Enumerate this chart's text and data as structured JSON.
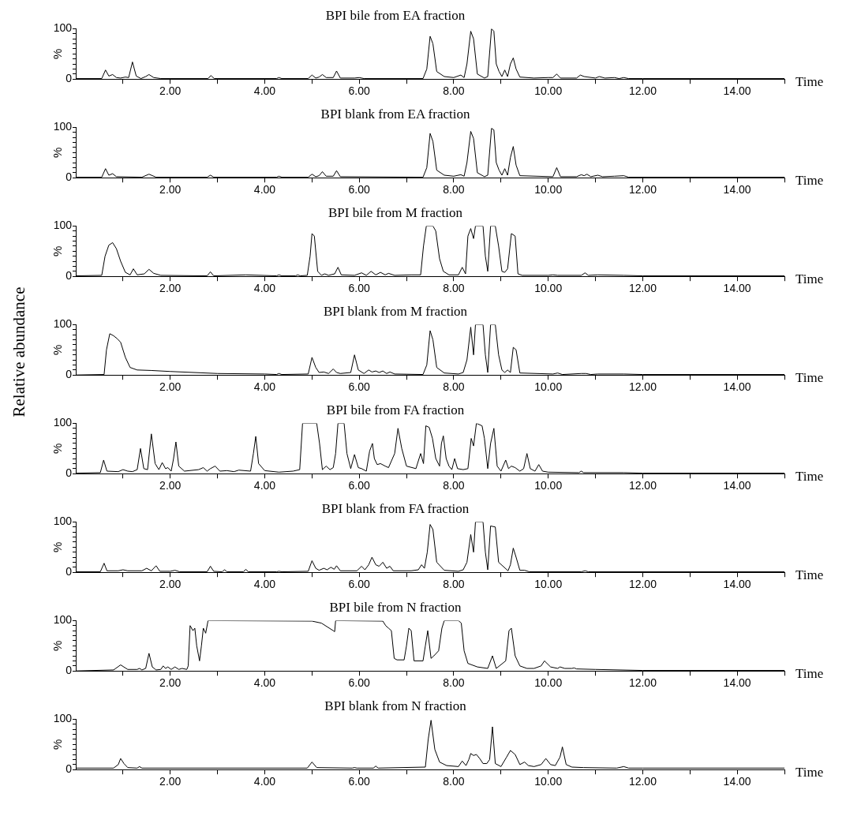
{
  "chart_data": [
    {
      "type": "line",
      "title": "BPI bile from EA fraction",
      "xlabel": "Time",
      "ylabel": "%",
      "color": "#000000",
      "xlim": [
        0,
        15
      ],
      "ylim": [
        0,
        100
      ],
      "xticks": [
        {
          "value": 1,
          "label": null
        },
        {
          "value": 2,
          "label": "2.00"
        },
        {
          "value": 3,
          "label": null
        },
        {
          "value": 4,
          "label": "4.00"
        },
        {
          "value": 5,
          "label": null
        },
        {
          "value": 6,
          "label": "6.00"
        },
        {
          "value": 7,
          "label": null
        },
        {
          "value": 8,
          "label": "8.00"
        },
        {
          "value": 9,
          "label": null
        },
        {
          "value": 10,
          "label": "10.00"
        },
        {
          "value": 11,
          "label": null
        },
        {
          "value": 12,
          "label": "12.00"
        },
        {
          "value": 13,
          "label": null
        },
        {
          "value": 14,
          "label": "14.00"
        },
        {
          "value": 15,
          "label": null
        }
      ],
      "yticks": [
        {
          "value": 0,
          "label": "0"
        },
        {
          "value": 10,
          "label": null
        },
        {
          "value": 20,
          "label": null
        },
        {
          "value": 30,
          "label": null
        },
        {
          "value": 40,
          "label": null
        },
        {
          "value": 50,
          "label": null
        },
        {
          "value": 60,
          "label": null
        },
        {
          "value": 70,
          "label": null
        },
        {
          "value": 80,
          "label": null
        },
        {
          "value": 90,
          "label": null
        },
        {
          "value": 100,
          "label": "100"
        }
      ],
      "x": [
        0,
        0.55,
        0.63,
        0.7,
        0.78,
        0.86,
        0.95,
        1.05,
        1.12,
        1.2,
        1.28,
        1.38,
        1.48,
        1.55,
        1.65,
        1.8,
        2.8,
        2.86,
        2.93,
        4.25,
        4.3,
        4.36,
        4.92,
        5.0,
        5.08,
        5.15,
        5.22,
        5.3,
        5.45,
        5.52,
        5.6,
        5.9,
        6.0,
        6.1,
        7.35,
        7.43,
        7.5,
        7.56,
        7.64,
        7.8,
        8.0,
        8.15,
        8.22,
        8.28,
        8.36,
        8.42,
        8.5,
        8.65,
        8.72,
        8.8,
        8.85,
        8.9,
        8.96,
        9.02,
        9.08,
        9.14,
        9.2,
        9.26,
        9.32,
        9.4,
        9.7,
        10.0,
        10.1,
        10.18,
        10.26,
        10.6,
        10.68,
        10.76,
        10.84,
        11.0,
        11.08,
        11.2,
        11.4,
        11.5,
        11.6,
        11.7,
        12,
        15
      ],
      "values": [
        1,
        1,
        18,
        6,
        9,
        3,
        2,
        4,
        3,
        34,
        6,
        1,
        5,
        9,
        3,
        1,
        1,
        7,
        1,
        1,
        3,
        1,
        1,
        8,
        2,
        4,
        9,
        3,
        3,
        16,
        2,
        2,
        3,
        1,
        1,
        20,
        85,
        70,
        15,
        5,
        3,
        8,
        3,
        30,
        95,
        80,
        10,
        2,
        5,
        100,
        95,
        30,
        15,
        5,
        18,
        5,
        30,
        42,
        20,
        4,
        2,
        3,
        3,
        10,
        2,
        2,
        8,
        5,
        4,
        2,
        5,
        2,
        3,
        1,
        3,
        1,
        1,
        1
      ]
    },
    {
      "type": "line",
      "title": "BPI blank from EA fraction",
      "xlabel": "Time",
      "ylabel": "%",
      "color": "#000000",
      "xlim": [
        0,
        15
      ],
      "ylim": [
        0,
        100
      ],
      "xticks": [
        {
          "value": 1,
          "label": null
        },
        {
          "value": 2,
          "label": "2.00"
        },
        {
          "value": 3,
          "label": null
        },
        {
          "value": 4,
          "label": "4.00"
        },
        {
          "value": 5,
          "label": null
        },
        {
          "value": 6,
          "label": "6.00"
        },
        {
          "value": 7,
          "label": null
        },
        {
          "value": 8,
          "label": "8.00"
        },
        {
          "value": 9,
          "label": null
        },
        {
          "value": 10,
          "label": "10.00"
        },
        {
          "value": 11,
          "label": null
        },
        {
          "value": 12,
          "label": "12.00"
        },
        {
          "value": 13,
          "label": null
        },
        {
          "value": 14,
          "label": "14.00"
        },
        {
          "value": 15,
          "label": null
        }
      ],
      "yticks": [
        {
          "value": 0,
          "label": "0"
        },
        {
          "value": 10,
          "label": null
        },
        {
          "value": 20,
          "label": null
        },
        {
          "value": 30,
          "label": null
        },
        {
          "value": 40,
          "label": null
        },
        {
          "value": 50,
          "label": null
        },
        {
          "value": 60,
          "label": null
        },
        {
          "value": 70,
          "label": null
        },
        {
          "value": 80,
          "label": null
        },
        {
          "value": 90,
          "label": null
        },
        {
          "value": 100,
          "label": "100"
        }
      ],
      "x": [
        0,
        0.55,
        0.63,
        0.7,
        0.78,
        0.86,
        1.4,
        1.55,
        1.7,
        2.78,
        2.85,
        2.92,
        4.25,
        4.3,
        4.36,
        4.92,
        5.0,
        5.08,
        5.15,
        5.22,
        5.3,
        5.45,
        5.52,
        5.6,
        7.35,
        7.43,
        7.5,
        7.56,
        7.64,
        7.8,
        8.0,
        8.15,
        8.22,
        8.28,
        8.36,
        8.42,
        8.5,
        8.65,
        8.72,
        8.8,
        8.85,
        8.9,
        8.96,
        9.02,
        9.08,
        9.14,
        9.2,
        9.26,
        9.32,
        9.4,
        10.1,
        10.18,
        10.26,
        10.6,
        10.7,
        10.76,
        10.82,
        10.9,
        11.05,
        11.15,
        11.4,
        11.6,
        11.7,
        15
      ],
      "values": [
        1,
        1,
        18,
        5,
        8,
        2,
        1,
        7,
        1,
        1,
        5,
        1,
        1,
        3,
        1,
        1,
        7,
        2,
        4,
        12,
        3,
        3,
        14,
        2,
        1,
        20,
        88,
        72,
        15,
        5,
        3,
        6,
        3,
        30,
        92,
        78,
        10,
        2,
        5,
        98,
        95,
        30,
        15,
        5,
        18,
        5,
        40,
        62,
        25,
        4,
        2,
        20,
        2,
        2,
        6,
        4,
        7,
        2,
        5,
        2,
        3,
        4,
        1,
        1
      ]
    },
    {
      "type": "line",
      "title": "BPI bile from M fraction",
      "xlabel": "Time",
      "ylabel": "%",
      "color": "#000000",
      "xlim": [
        0,
        15
      ],
      "ylim": [
        0,
        100
      ],
      "xticks": [
        {
          "value": 1,
          "label": null
        },
        {
          "value": 2,
          "label": "2.00"
        },
        {
          "value": 3,
          "label": null
        },
        {
          "value": 4,
          "label": "4.00"
        },
        {
          "value": 5,
          "label": null
        },
        {
          "value": 6,
          "label": "6.00"
        },
        {
          "value": 7,
          "label": null
        },
        {
          "value": 8,
          "label": "8.00"
        },
        {
          "value": 9,
          "label": null
        },
        {
          "value": 10,
          "label": "10.00"
        },
        {
          "value": 11,
          "label": null
        },
        {
          "value": 12,
          "label": "12.00"
        },
        {
          "value": 13,
          "label": null
        },
        {
          "value": 14,
          "label": "14.00"
        },
        {
          "value": 15,
          "label": null
        }
      ],
      "yticks": [
        {
          "value": 0,
          "label": "0"
        },
        {
          "value": 10,
          "label": null
        },
        {
          "value": 20,
          "label": null
        },
        {
          "value": 30,
          "label": null
        },
        {
          "value": 40,
          "label": null
        },
        {
          "value": 50,
          "label": null
        },
        {
          "value": 60,
          "label": null
        },
        {
          "value": 70,
          "label": null
        },
        {
          "value": 80,
          "label": null
        },
        {
          "value": 90,
          "label": null
        },
        {
          "value": 100,
          "label": "100"
        }
      ],
      "x": [
        0,
        0.55,
        0.62,
        0.7,
        0.78,
        0.86,
        0.95,
        1.05,
        1.15,
        1.22,
        1.3,
        1.45,
        1.55,
        1.65,
        1.8,
        2.78,
        2.85,
        2.92,
        3.6,
        4.25,
        4.3,
        4.36,
        4.65,
        4.7,
        4.75,
        4.9,
        4.96,
        5.0,
        5.05,
        5.12,
        5.2,
        5.27,
        5.35,
        5.48,
        5.55,
        5.62,
        5.9,
        6.05,
        6.15,
        6.25,
        6.35,
        6.45,
        6.55,
        6.62,
        6.75,
        7.1,
        7.3,
        7.36,
        7.42,
        7.56,
        7.62,
        7.7,
        7.78,
        7.9,
        8.1,
        8.18,
        8.25,
        8.3,
        8.36,
        8.42,
        8.46,
        8.5,
        8.62,
        8.67,
        8.72,
        8.78,
        8.88,
        8.95,
        9.02,
        9.08,
        9.14,
        9.22,
        9.3,
        9.36,
        9.45,
        10.0,
        10.1,
        10.2,
        10.7,
        10.78,
        10.85,
        11.05,
        11.6,
        12,
        15
      ],
      "values": [
        1,
        2,
        40,
        62,
        67,
        55,
        30,
        8,
        3,
        15,
        3,
        5,
        14,
        6,
        2,
        1,
        9,
        1,
        3,
        1,
        3,
        1,
        1,
        3,
        1,
        2,
        40,
        85,
        80,
        10,
        2,
        5,
        2,
        5,
        18,
        3,
        2,
        7,
        2,
        10,
        3,
        8,
        3,
        6,
        2,
        3,
        3,
        60,
        100,
        100,
        90,
        35,
        10,
        3,
        3,
        18,
        5,
        80,
        95,
        75,
        100,
        100,
        100,
        40,
        10,
        100,
        100,
        60,
        10,
        8,
        15,
        85,
        80,
        5,
        2,
        2,
        3,
        2,
        2,
        7,
        2,
        3,
        2,
        1,
        1
      ]
    },
    {
      "type": "line",
      "title": "BPI blank from M fraction",
      "xlabel": "Time",
      "ylabel": "%",
      "color": "#000000",
      "xlim": [
        0,
        15
      ],
      "ylim": [
        0,
        100
      ],
      "annotations": [
        "Relative abundance"
      ],
      "xticks": [
        {
          "value": 1,
          "label": null
        },
        {
          "value": 2,
          "label": "2.00"
        },
        {
          "value": 3,
          "label": null
        },
        {
          "value": 4,
          "label": "4.00"
        },
        {
          "value": 5,
          "label": null
        },
        {
          "value": 6,
          "label": "6.00"
        },
        {
          "value": 7,
          "label": null
        },
        {
          "value": 8,
          "label": "8.00"
        },
        {
          "value": 9,
          "label": null
        },
        {
          "value": 10,
          "label": "10.00"
        },
        {
          "value": 11,
          "label": null
        },
        {
          "value": 12,
          "label": "12.00"
        },
        {
          "value": 13,
          "label": null
        },
        {
          "value": 14,
          "label": "14.00"
        },
        {
          "value": 15,
          "label": null
        }
      ],
      "yticks": [
        {
          "value": 0,
          "label": "0"
        },
        {
          "value": 10,
          "label": null
        },
        {
          "value": 20,
          "label": null
        },
        {
          "value": 30,
          "label": null
        },
        {
          "value": 40,
          "label": null
        },
        {
          "value": 50,
          "label": null
        },
        {
          "value": 60,
          "label": null
        },
        {
          "value": 70,
          "label": null
        },
        {
          "value": 80,
          "label": null
        },
        {
          "value": 90,
          "label": null
        },
        {
          "value": 100,
          "label": "100"
        }
      ],
      "x": [
        0,
        0.6,
        0.65,
        0.72,
        0.8,
        0.88,
        0.95,
        1.05,
        1.15,
        1.3,
        1.6,
        2,
        3,
        4,
        4.25,
        4.3,
        4.36,
        4.92,
        5.0,
        5.08,
        5.15,
        5.25,
        5.35,
        5.45,
        5.52,
        5.6,
        5.82,
        5.9,
        5.98,
        6.1,
        6.2,
        6.27,
        6.35,
        6.42,
        6.5,
        6.58,
        6.65,
        6.75,
        7.35,
        7.43,
        7.5,
        7.56,
        7.64,
        7.8,
        8.1,
        8.2,
        8.28,
        8.36,
        8.42,
        8.46,
        8.5,
        8.62,
        8.67,
        8.72,
        8.78,
        8.88,
        8.95,
        9.02,
        9.08,
        9.14,
        9.2,
        9.26,
        9.32,
        9.4,
        10.1,
        10.2,
        10.3,
        10.7,
        10.8,
        10.9,
        11.05,
        11.6,
        12,
        15
      ],
      "values": [
        0,
        1,
        50,
        82,
        78,
        72,
        65,
        35,
        15,
        10,
        9,
        7,
        3,
        2,
        1,
        3,
        1,
        2,
        35,
        15,
        5,
        6,
        3,
        12,
        5,
        3,
        5,
        40,
        10,
        3,
        10,
        6,
        8,
        5,
        8,
        3,
        6,
        2,
        1,
        20,
        88,
        70,
        15,
        4,
        2,
        5,
        30,
        95,
        40,
        100,
        100,
        100,
        40,
        5,
        100,
        100,
        40,
        10,
        5,
        10,
        5,
        55,
        50,
        4,
        2,
        4,
        1,
        3,
        3,
        1,
        2,
        2,
        1,
        1
      ]
    },
    {
      "type": "line",
      "title": "BPI bile from FA fraction",
      "xlabel": "Time",
      "ylabel": "%",
      "color": "#000000",
      "xlim": [
        0,
        15
      ],
      "ylim": [
        0,
        100
      ],
      "xticks": [
        {
          "value": 1,
          "label": null
        },
        {
          "value": 2,
          "label": "2.00"
        },
        {
          "value": 3,
          "label": null
        },
        {
          "value": 4,
          "label": "4.00"
        },
        {
          "value": 5,
          "label": null
        },
        {
          "value": 6,
          "label": "6.00"
        },
        {
          "value": 7,
          "label": null
        },
        {
          "value": 8,
          "label": "8.00"
        },
        {
          "value": 9,
          "label": null
        },
        {
          "value": 10,
          "label": "10.00"
        },
        {
          "value": 11,
          "label": null
        },
        {
          "value": 12,
          "label": "12.00"
        },
        {
          "value": 13,
          "label": null
        },
        {
          "value": 14,
          "label": "14.00"
        },
        {
          "value": 15,
          "label": null
        }
      ],
      "yticks": [
        {
          "value": 0,
          "label": "0"
        },
        {
          "value": 10,
          "label": null
        },
        {
          "value": 20,
          "label": null
        },
        {
          "value": 30,
          "label": null
        },
        {
          "value": 40,
          "label": null
        },
        {
          "value": 50,
          "label": null
        },
        {
          "value": 60,
          "label": null
        },
        {
          "value": 70,
          "label": null
        },
        {
          "value": 80,
          "label": null
        },
        {
          "value": 90,
          "label": null
        },
        {
          "value": 100,
          "label": "100"
        }
      ],
      "x": [
        0,
        0.52,
        0.59,
        0.66,
        0.9,
        1.0,
        1.1,
        1.2,
        1.3,
        1.37,
        1.44,
        1.52,
        1.6,
        1.68,
        1.76,
        1.83,
        1.9,
        1.95,
        2.02,
        2.07,
        2.12,
        2.18,
        2.3,
        2.6,
        2.7,
        2.78,
        2.85,
        2.95,
        3.05,
        3.2,
        3.35,
        3.45,
        3.7,
        3.76,
        3.81,
        3.87,
        4.0,
        4.3,
        4.6,
        4.74,
        4.8,
        5.1,
        5.16,
        5.22,
        5.3,
        5.38,
        5.45,
        5.5,
        5.55,
        5.68,
        5.74,
        5.82,
        5.9,
        5.98,
        6.05,
        6.15,
        6.22,
        6.28,
        6.32,
        6.38,
        6.45,
        6.55,
        6.62,
        6.75,
        6.82,
        6.9,
        7.0,
        7.2,
        7.3,
        7.36,
        7.41,
        7.48,
        7.55,
        7.62,
        7.7,
        7.74,
        7.78,
        7.84,
        7.9,
        7.96,
        8.02,
        8.08,
        8.2,
        8.3,
        8.37,
        8.42,
        8.48,
        8.6,
        8.65,
        8.72,
        8.78,
        8.85,
        8.92,
        9.0,
        9.1,
        9.16,
        9.22,
        9.3,
        9.4,
        9.48,
        9.55,
        9.62,
        9.72,
        9.8,
        9.88,
        10.0,
        10.65,
        10.7,
        10.75,
        11.6,
        12,
        15
      ],
      "values": [
        1,
        2,
        27,
        5,
        4,
        8,
        5,
        4,
        8,
        50,
        10,
        8,
        79,
        20,
        8,
        22,
        10,
        12,
        5,
        30,
        63,
        15,
        5,
        8,
        12,
        5,
        10,
        15,
        5,
        6,
        4,
        7,
        5,
        40,
        74,
        20,
        6,
        3,
        5,
        8,
        100,
        100,
        60,
        8,
        15,
        8,
        12,
        40,
        100,
        100,
        40,
        10,
        38,
        12,
        10,
        5,
        45,
        60,
        30,
        18,
        20,
        15,
        12,
        40,
        90,
        50,
        15,
        10,
        40,
        20,
        95,
        92,
        70,
        30,
        15,
        60,
        75,
        30,
        15,
        8,
        30,
        10,
        8,
        10,
        70,
        55,
        100,
        95,
        70,
        10,
        60,
        90,
        15,
        5,
        27,
        10,
        15,
        12,
        5,
        10,
        40,
        10,
        5,
        18,
        5,
        3,
        2,
        5,
        2,
        2,
        1,
        1
      ]
    },
    {
      "type": "line",
      "title": "BPI blank from FA fraction",
      "xlabel": "Time",
      "ylabel": "%",
      "color": "#000000",
      "xlim": [
        0,
        15
      ],
      "ylim": [
        0,
        100
      ],
      "xticks": [
        {
          "value": 1,
          "label": null
        },
        {
          "value": 2,
          "label": "2.00"
        },
        {
          "value": 3,
          "label": null
        },
        {
          "value": 4,
          "label": "4.00"
        },
        {
          "value": 5,
          "label": null
        },
        {
          "value": 6,
          "label": "6.00"
        },
        {
          "value": 7,
          "label": null
        },
        {
          "value": 8,
          "label": "8.00"
        },
        {
          "value": 9,
          "label": null
        },
        {
          "value": 10,
          "label": "10.00"
        },
        {
          "value": 11,
          "label": null
        },
        {
          "value": 12,
          "label": "12.00"
        },
        {
          "value": 13,
          "label": null
        },
        {
          "value": 14,
          "label": "14.00"
        },
        {
          "value": 15,
          "label": null
        }
      ],
      "yticks": [
        {
          "value": 0,
          "label": "0"
        },
        {
          "value": 10,
          "label": null
        },
        {
          "value": 20,
          "label": null
        },
        {
          "value": 30,
          "label": null
        },
        {
          "value": 40,
          "label": null
        },
        {
          "value": 50,
          "label": null
        },
        {
          "value": 60,
          "label": null
        },
        {
          "value": 70,
          "label": null
        },
        {
          "value": 80,
          "label": null
        },
        {
          "value": 90,
          "label": null
        },
        {
          "value": 100,
          "label": "100"
        }
      ],
      "x": [
        0,
        0.52,
        0.6,
        0.66,
        0.9,
        1.0,
        1.1,
        1.4,
        1.5,
        1.6,
        1.7,
        1.78,
        2.0,
        2.1,
        2.2,
        2.78,
        2.85,
        2.92,
        3.1,
        3.15,
        3.2,
        3.55,
        3.6,
        3.65,
        4.25,
        4.3,
        4.36,
        4.92,
        5.0,
        5.08,
        5.15,
        5.25,
        5.32,
        5.4,
        5.47,
        5.52,
        5.6,
        5.95,
        6.05,
        6.12,
        6.2,
        6.27,
        6.35,
        6.42,
        6.5,
        6.58,
        6.65,
        6.72,
        7.1,
        7.25,
        7.32,
        7.38,
        7.44,
        7.5,
        7.56,
        7.64,
        7.8,
        8.1,
        8.2,
        8.28,
        8.36,
        8.42,
        8.46,
        8.5,
        8.62,
        8.67,
        8.72,
        8.78,
        8.88,
        8.95,
        9.15,
        9.2,
        9.26,
        9.32,
        9.4,
        9.5,
        9.6,
        10.7,
        10.78,
        10.85,
        15
      ],
      "values": [
        1,
        1,
        18,
        3,
        3,
        5,
        3,
        3,
        8,
        3,
        13,
        2,
        2,
        4,
        1,
        1,
        12,
        2,
        1,
        5,
        1,
        1,
        6,
        1,
        1,
        2,
        1,
        2,
        23,
        8,
        4,
        8,
        5,
        10,
        6,
        13,
        3,
        3,
        12,
        5,
        15,
        30,
        15,
        12,
        20,
        8,
        12,
        3,
        3,
        5,
        15,
        8,
        40,
        95,
        85,
        20,
        4,
        2,
        5,
        20,
        75,
        40,
        100,
        100,
        100,
        40,
        5,
        92,
        90,
        20,
        3,
        15,
        48,
        30,
        4,
        4,
        1,
        1,
        3,
        1,
        1
      ]
    },
    {
      "type": "line",
      "title": "BPI bile from N fraction",
      "xlabel": "Time",
      "ylabel": "%",
      "color": "#000000",
      "xlim": [
        0,
        15
      ],
      "ylim": [
        0,
        100
      ],
      "xticks": [
        {
          "value": 1,
          "label": null
        },
        {
          "value": 2,
          "label": "2.00"
        },
        {
          "value": 3,
          "label": null
        },
        {
          "value": 4,
          "label": "4.00"
        },
        {
          "value": 5,
          "label": null
        },
        {
          "value": 6,
          "label": "6.00"
        },
        {
          "value": 7,
          "label": null
        },
        {
          "value": 8,
          "label": "8.00"
        },
        {
          "value": 9,
          "label": null
        },
        {
          "value": 10,
          "label": "10.00"
        },
        {
          "value": 11,
          "label": null
        },
        {
          "value": 12,
          "label": "12.00"
        },
        {
          "value": 13,
          "label": null
        },
        {
          "value": 14,
          "label": "14.00"
        },
        {
          "value": 15,
          "label": null
        }
      ],
      "yticks": [
        {
          "value": 0,
          "label": "0"
        },
        {
          "value": 10,
          "label": null
        },
        {
          "value": 20,
          "label": null
        },
        {
          "value": 30,
          "label": null
        },
        {
          "value": 40,
          "label": null
        },
        {
          "value": 50,
          "label": null
        },
        {
          "value": 60,
          "label": null
        },
        {
          "value": 70,
          "label": null
        },
        {
          "value": 80,
          "label": null
        },
        {
          "value": 90,
          "label": null
        },
        {
          "value": 100,
          "label": "100"
        }
      ],
      "x": [
        0,
        0.8,
        0.95,
        1.1,
        1.3,
        1.35,
        1.4,
        1.48,
        1.55,
        1.62,
        1.7,
        1.8,
        1.85,
        1.9,
        1.95,
        2.02,
        2.1,
        2.18,
        2.25,
        2.35,
        2.38,
        2.42,
        2.48,
        2.52,
        2.56,
        2.62,
        2.66,
        2.7,
        2.75,
        2.8,
        5.0,
        5.2,
        5.45,
        5.48,
        5.5,
        6.5,
        6.56,
        6.62,
        6.68,
        6.74,
        6.8,
        6.95,
        7.0,
        7.05,
        7.1,
        7.16,
        7.35,
        7.4,
        7.45,
        7.52,
        7.58,
        7.68,
        7.75,
        7.8,
        8.1,
        8.16,
        8.22,
        8.3,
        8.5,
        8.72,
        8.82,
        8.9,
        9.1,
        9.17,
        9.22,
        9.3,
        9.4,
        9.55,
        9.7,
        9.85,
        9.92,
        10.05,
        10.2,
        10.25,
        10.35,
        10.5,
        10.55,
        10.6,
        11.0,
        12,
        15
      ],
      "values": [
        0,
        2,
        12,
        3,
        3,
        5,
        2,
        5,
        35,
        8,
        2,
        3,
        10,
        5,
        8,
        3,
        8,
        3,
        5,
        3,
        10,
        90,
        80,
        85,
        50,
        20,
        50,
        85,
        75,
        100,
        99,
        95,
        80,
        78,
        100,
        99,
        90,
        85,
        80,
        25,
        22,
        22,
        50,
        85,
        80,
        20,
        20,
        50,
        80,
        25,
        30,
        40,
        85,
        100,
        100,
        95,
        40,
        15,
        8,
        5,
        30,
        5,
        20,
        80,
        85,
        30,
        10,
        5,
        5,
        10,
        20,
        8,
        5,
        8,
        5,
        5,
        6,
        4,
        3,
        1,
        1
      ]
    },
    {
      "type": "line",
      "title": "BPI blank from N fraction",
      "xlabel": "Time",
      "ylabel": "%",
      "color": "#000000",
      "xlim": [
        0,
        15
      ],
      "ylim": [
        0,
        100
      ],
      "xticks": [
        {
          "value": 1,
          "label": null
        },
        {
          "value": 2,
          "label": "2.00"
        },
        {
          "value": 3,
          "label": null
        },
        {
          "value": 4,
          "label": "4.00"
        },
        {
          "value": 5,
          "label": null
        },
        {
          "value": 6,
          "label": "6.00"
        },
        {
          "value": 7,
          "label": null
        },
        {
          "value": 8,
          "label": "8.00"
        },
        {
          "value": 9,
          "label": null
        },
        {
          "value": 10,
          "label": "10.00"
        },
        {
          "value": 11,
          "label": null
        },
        {
          "value": 12,
          "label": "12.00"
        },
        {
          "value": 13,
          "label": null
        },
        {
          "value": 14,
          "label": "14.00"
        },
        {
          "value": 15,
          "label": null
        }
      ],
      "yticks": [
        {
          "value": 0,
          "label": "0"
        },
        {
          "value": 10,
          "label": null
        },
        {
          "value": 20,
          "label": null
        },
        {
          "value": 30,
          "label": null
        },
        {
          "value": 40,
          "label": null
        },
        {
          "value": 50,
          "label": null
        },
        {
          "value": 60,
          "label": null
        },
        {
          "value": 70,
          "label": null
        },
        {
          "value": 80,
          "label": null
        },
        {
          "value": 90,
          "label": null
        },
        {
          "value": 100,
          "label": "100"
        }
      ],
      "x": [
        0,
        0.8,
        0.9,
        0.95,
        1.02,
        1.1,
        1.3,
        1.35,
        1.4,
        4.9,
        5.0,
        5.1,
        5.85,
        5.9,
        5.95,
        6.3,
        6.35,
        6.4,
        7.4,
        7.46,
        7.52,
        7.6,
        7.7,
        7.85,
        8.1,
        8.18,
        8.26,
        8.32,
        8.36,
        8.42,
        8.48,
        8.55,
        8.62,
        8.7,
        8.76,
        8.82,
        8.88,
        9.0,
        9.12,
        9.2,
        9.3,
        9.4,
        9.5,
        9.58,
        9.7,
        9.85,
        9.95,
        10.05,
        10.15,
        10.25,
        10.3,
        10.38,
        10.5,
        10.75,
        11.45,
        11.6,
        11.7,
        12,
        15
      ],
      "values": [
        3,
        3,
        10,
        22,
        12,
        4,
        3,
        6,
        3,
        3,
        15,
        4,
        3,
        4,
        3,
        3,
        7,
        3,
        5,
        60,
        98,
        40,
        15,
        8,
        6,
        17,
        8,
        20,
        32,
        28,
        30,
        22,
        12,
        12,
        20,
        85,
        12,
        6,
        25,
        38,
        30,
        10,
        15,
        8,
        6,
        10,
        22,
        10,
        8,
        25,
        45,
        10,
        5,
        4,
        3,
        6,
        3,
        3,
        3
      ]
    }
  ]
}
